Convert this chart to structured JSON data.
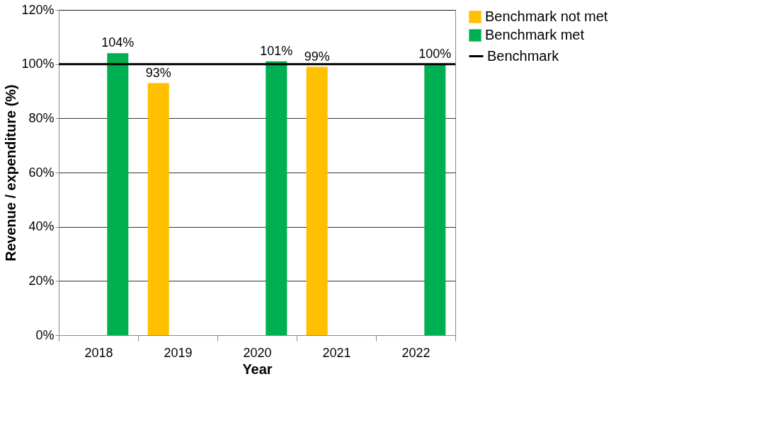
{
  "chart_data": {
    "type": "bar",
    "xlabel": "Year",
    "ylabel": "Revenue / expenditure (%)",
    "categories": [
      "2018",
      "2019",
      "2020",
      "2021",
      "2022"
    ],
    "series": [
      {
        "name": "Benchmark not met",
        "color": "#ffc000",
        "values": [
          null,
          93,
          null,
          99,
          null
        ],
        "value_labels": [
          null,
          "93%",
          null,
          "99%",
          null
        ]
      },
      {
        "name": "Benchmark  met",
        "color": "#00b050",
        "values": [
          104,
          null,
          101,
          null,
          100
        ],
        "value_labels": [
          "104%",
          null,
          "101%",
          null,
          "100%"
        ]
      }
    ],
    "ylim": [
      0,
      120
    ],
    "yticks": [
      {
        "value": 0,
        "label": "0%"
      },
      {
        "value": 20,
        "label": "20%"
      },
      {
        "value": 40,
        "label": "40%"
      },
      {
        "value": 60,
        "label": "60%"
      },
      {
        "value": 80,
        "label": "80%"
      },
      {
        "value": 100,
        "label": "100%"
      },
      {
        "value": 120,
        "label": "120%"
      }
    ],
    "ref_lines": [
      {
        "axis": "y",
        "value": 100,
        "label": "Benchmark",
        "color": "#000000"
      }
    ],
    "grid": "y",
    "legend": "right"
  }
}
